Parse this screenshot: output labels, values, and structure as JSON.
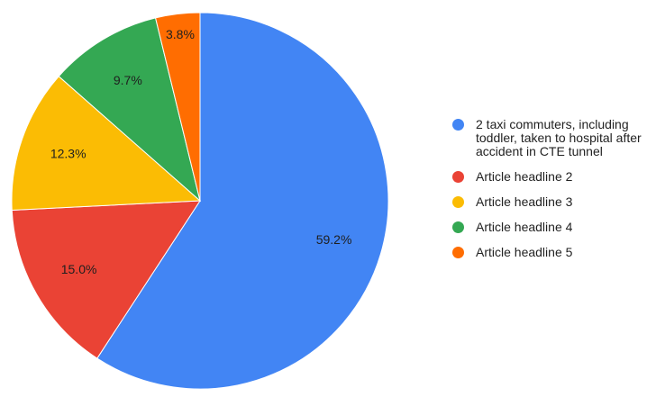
{
  "chart_data": {
    "type": "pie",
    "title": "",
    "legend_position": "right",
    "label_format": "percent",
    "slices": [
      {
        "label": "2 taxi commuters, including toddler, taken to hospital after accident in CTE tunnel",
        "value": 59.2,
        "display": "59.2%",
        "color": "#4285F4"
      },
      {
        "label": "Article headline 2",
        "value": 15.0,
        "display": "15.0%",
        "color": "#EA4335"
      },
      {
        "label": "Article headline 3",
        "value": 12.3,
        "display": "12.3%",
        "color": "#FBBC04"
      },
      {
        "label": "Article headline 4",
        "value": 9.7,
        "display": "9.7%",
        "color": "#34A853"
      },
      {
        "label": "Article headline 5",
        "value": 3.8,
        "display": "3.8%",
        "color": "#FF6D01"
      }
    ]
  }
}
